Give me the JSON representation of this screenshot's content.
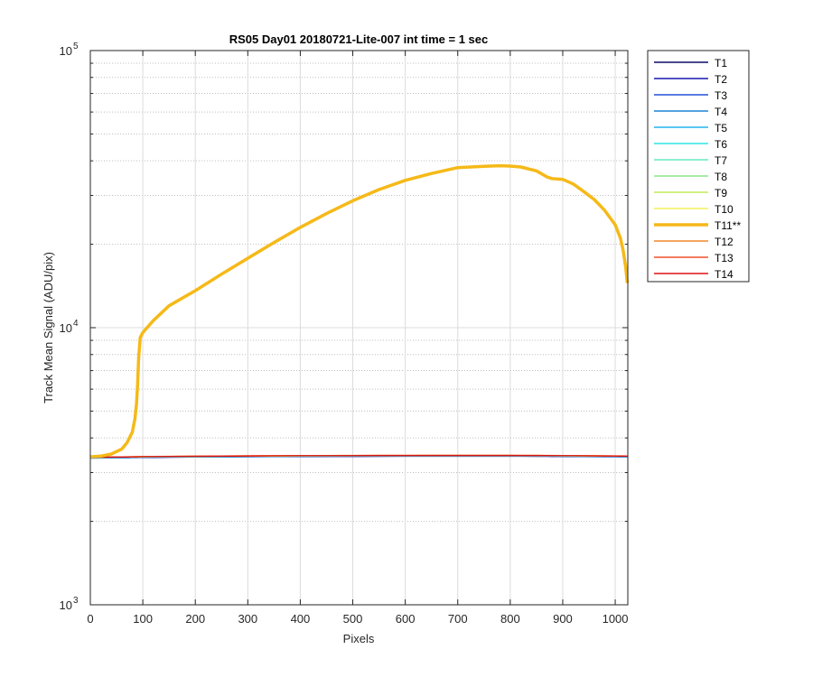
{
  "chart_data": {
    "type": "line",
    "title": "RS05 Day01 20180721-Lite-007 int time = 1 sec",
    "xlabel": "Pixels",
    "ylabel": "Track Mean Signal (ADU/pix)",
    "xlim": [
      0,
      1024
    ],
    "ylim": [
      1000,
      100000
    ],
    "yscale": "log",
    "grid": true,
    "legend_position": "outside-top-right",
    "x_ticks": [
      "0",
      "100",
      "200",
      "300",
      "400",
      "500",
      "600",
      "700",
      "800",
      "900",
      "1000"
    ],
    "y_ticks": [
      {
        "base": "10",
        "exp": "3",
        "value": 1000
      },
      {
        "base": "10",
        "exp": "4",
        "value": 10000
      },
      {
        "base": "10",
        "exp": "5",
        "value": 100000
      }
    ],
    "x": [
      0,
      20,
      40,
      60,
      70,
      80,
      85,
      88,
      90,
      92,
      95,
      100,
      120,
      150,
      200,
      250,
      300,
      350,
      400,
      450,
      500,
      550,
      600,
      650,
      700,
      750,
      780,
      800,
      820,
      850,
      870,
      880,
      900,
      920,
      940,
      960,
      980,
      1000,
      1010,
      1015,
      1020,
      1023
    ],
    "series": [
      {
        "name": "T1",
        "color": "#0b0b6b",
        "bold": false,
        "values": [
          3390,
          3395,
          3398,
          3400,
          3402,
          3405,
          3406,
          3407,
          3407,
          3408,
          3408,
          3410,
          3412,
          3415,
          3420,
          3425,
          3430,
          3433,
          3436,
          3438,
          3440,
          3442,
          3443,
          3444,
          3444,
          3444,
          3444,
          3444,
          3443,
          3442,
          3441,
          3440,
          3438,
          3436,
          3434,
          3432,
          3430,
          3428,
          3427,
          3426,
          3425,
          3425
        ]
      },
      {
        "name": "T2",
        "color": "#1616b0",
        "bold": false,
        "values": [
          3380,
          3385,
          3388,
          3390,
          3392,
          3395,
          3396,
          3397,
          3397,
          3398,
          3398,
          3400,
          3402,
          3405,
          3410,
          3415,
          3420,
          3423,
          3426,
          3428,
          3430,
          3432,
          3433,
          3434,
          3434,
          3434,
          3434,
          3434,
          3433,
          3432,
          3431,
          3430,
          3428,
          3426,
          3424,
          3422,
          3420,
          3418,
          3417,
          3416,
          3415,
          3415
        ]
      },
      {
        "name": "T3",
        "color": "#2450d8",
        "bold": false,
        "values": [
          3385,
          3390,
          3393,
          3395,
          3397,
          3400,
          3401,
          3402,
          3402,
          3403,
          3403,
          3405,
          3407,
          3410,
          3415,
          3420,
          3425,
          3428,
          3431,
          3433,
          3435,
          3437,
          3438,
          3439,
          3439,
          3439,
          3439,
          3439,
          3438,
          3437,
          3436,
          3435,
          3433,
          3431,
          3429,
          3427,
          3425,
          3423,
          3422,
          3421,
          3420,
          3420
        ]
      },
      {
        "name": "T4",
        "color": "#1f82d6",
        "bold": false,
        "values": [
          3388,
          3393,
          3396,
          3398,
          3400,
          3403,
          3404,
          3405,
          3405,
          3406,
          3406,
          3408,
          3410,
          3413,
          3418,
          3423,
          3428,
          3431,
          3434,
          3436,
          3438,
          3440,
          3441,
          3442,
          3442,
          3442,
          3442,
          3442,
          3441,
          3440,
          3439,
          3438,
          3436,
          3434,
          3432,
          3430,
          3428,
          3426,
          3425,
          3424,
          3423,
          3423
        ]
      },
      {
        "name": "T5",
        "color": "#22b4ec",
        "bold": false,
        "values": [
          3392,
          3397,
          3400,
          3402,
          3404,
          3407,
          3408,
          3409,
          3409,
          3410,
          3410,
          3412,
          3414,
          3417,
          3422,
          3427,
          3432,
          3435,
          3438,
          3440,
          3442,
          3444,
          3445,
          3446,
          3446,
          3446,
          3446,
          3446,
          3445,
          3444,
          3443,
          3442,
          3440,
          3438,
          3436,
          3434,
          3432,
          3430,
          3429,
          3428,
          3427,
          3427
        ]
      },
      {
        "name": "T6",
        "color": "#2ee6e6",
        "bold": false,
        "values": [
          3395,
          3400,
          3403,
          3405,
          3407,
          3410,
          3411,
          3412,
          3412,
          3413,
          3413,
          3415,
          3417,
          3420,
          3425,
          3430,
          3435,
          3438,
          3441,
          3443,
          3445,
          3447,
          3448,
          3449,
          3449,
          3449,
          3449,
          3449,
          3448,
          3447,
          3446,
          3445,
          3443,
          3441,
          3439,
          3437,
          3435,
          3433,
          3432,
          3431,
          3430,
          3430
        ]
      },
      {
        "name": "T7",
        "color": "#66e8c0",
        "bold": false,
        "values": [
          3398,
          3403,
          3406,
          3408,
          3410,
          3413,
          3414,
          3415,
          3415,
          3416,
          3416,
          3418,
          3420,
          3423,
          3428,
          3433,
          3438,
          3441,
          3444,
          3446,
          3448,
          3450,
          3451,
          3452,
          3452,
          3452,
          3452,
          3452,
          3451,
          3450,
          3449,
          3448,
          3446,
          3444,
          3442,
          3440,
          3438,
          3436,
          3435,
          3434,
          3433,
          3433
        ]
      },
      {
        "name": "T8",
        "color": "#8ce68c",
        "bold": false,
        "values": [
          3400,
          3405,
          3408,
          3410,
          3412,
          3415,
          3416,
          3417,
          3417,
          3418,
          3418,
          3420,
          3422,
          3425,
          3430,
          3435,
          3440,
          3443,
          3446,
          3448,
          3450,
          3452,
          3453,
          3454,
          3454,
          3454,
          3454,
          3454,
          3453,
          3452,
          3451,
          3450,
          3448,
          3446,
          3444,
          3442,
          3440,
          3438,
          3437,
          3436,
          3435,
          3435
        ]
      },
      {
        "name": "T9",
        "color": "#c0ec5a",
        "bold": false,
        "values": [
          3402,
          3407,
          3410,
          3412,
          3414,
          3417,
          3418,
          3419,
          3419,
          3420,
          3420,
          3422,
          3424,
          3427,
          3432,
          3437,
          3442,
          3445,
          3448,
          3450,
          3452,
          3454,
          3455,
          3456,
          3456,
          3456,
          3456,
          3456,
          3455,
          3454,
          3453,
          3452,
          3450,
          3448,
          3446,
          3444,
          3442,
          3440,
          3439,
          3438,
          3437,
          3437
        ]
      },
      {
        "name": "T10",
        "color": "#f2f05a",
        "bold": false,
        "values": [
          3405,
          3410,
          3413,
          3415,
          3417,
          3420,
          3421,
          3422,
          3422,
          3423,
          3423,
          3425,
          3427,
          3430,
          3435,
          3440,
          3445,
          3448,
          3451,
          3453,
          3455,
          3457,
          3458,
          3459,
          3459,
          3459,
          3459,
          3459,
          3458,
          3457,
          3456,
          3455,
          3453,
          3451,
          3449,
          3447,
          3445,
          3443,
          3442,
          3441,
          3440,
          3440
        ]
      },
      {
        "name": "T11**",
        "color": "#f5b918",
        "bold": true,
        "values": [
          3420,
          3440,
          3500,
          3650,
          3850,
          4200,
          4700,
          5300,
          6200,
          7800,
          9200,
          9600,
          10600,
          12000,
          13600,
          15600,
          17800,
          20300,
          23000,
          25800,
          28700,
          31500,
          34000,
          36000,
          37800,
          38200,
          38400,
          38300,
          38000,
          36800,
          35000,
          34500,
          34300,
          33000,
          31000,
          29000,
          26500,
          23500,
          21000,
          19000,
          16500,
          14500
        ]
      },
      {
        "name": "T12",
        "color": "#f28a2a",
        "bold": false,
        "values": [
          3410,
          3415,
          3418,
          3420,
          3422,
          3425,
          3426,
          3427,
          3427,
          3428,
          3428,
          3430,
          3432,
          3435,
          3440,
          3445,
          3450,
          3453,
          3456,
          3458,
          3460,
          3462,
          3463,
          3464,
          3464,
          3464,
          3464,
          3464,
          3463,
          3462,
          3461,
          3460,
          3458,
          3456,
          3454,
          3452,
          3450,
          3448,
          3447,
          3446,
          3445,
          3445
        ]
      },
      {
        "name": "T13",
        "color": "#f0502a",
        "bold": false,
        "values": [
          3407,
          3412,
          3415,
          3417,
          3419,
          3422,
          3423,
          3424,
          3424,
          3425,
          3425,
          3427,
          3429,
          3432,
          3437,
          3442,
          3447,
          3450,
          3453,
          3455,
          3457,
          3459,
          3460,
          3461,
          3461,
          3461,
          3461,
          3461,
          3460,
          3459,
          3458,
          3457,
          3455,
          3453,
          3451,
          3449,
          3447,
          3445,
          3444,
          3443,
          3442,
          3442
        ]
      },
      {
        "name": "T14",
        "color": "#e01414",
        "bold": false,
        "values": [
          3403,
          3408,
          3411,
          3413,
          3415,
          3418,
          3419,
          3420,
          3420,
          3421,
          3421,
          3423,
          3425,
          3428,
          3433,
          3438,
          3443,
          3446,
          3449,
          3451,
          3453,
          3455,
          3456,
          3457,
          3457,
          3457,
          3457,
          3457,
          3456,
          3455,
          3454,
          3453,
          3451,
          3449,
          3447,
          3445,
          3443,
          3441,
          3440,
          3439,
          3438,
          3438
        ]
      }
    ]
  }
}
